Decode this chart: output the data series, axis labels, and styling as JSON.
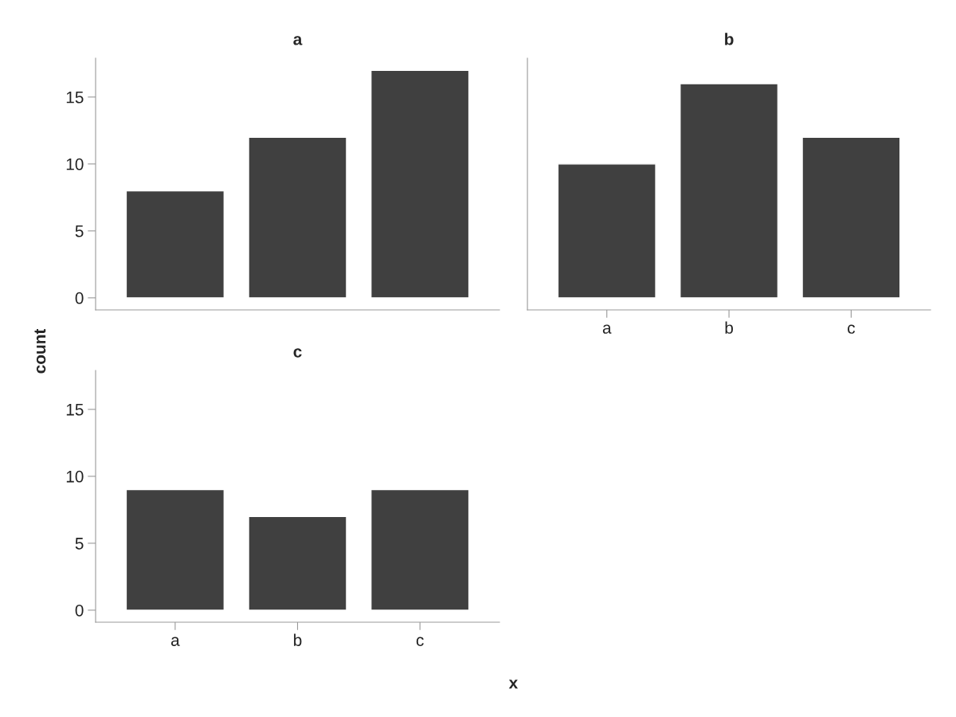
{
  "chart_data": [
    {
      "type": "bar",
      "title": "a",
      "categories": [
        null,
        null,
        null
      ],
      "values": [
        8,
        12,
        17
      ],
      "color": "#404040",
      "ylim": [
        -0.9,
        17.9
      ],
      "yticks": [
        0,
        5,
        10,
        15
      ],
      "tick_labels": "y",
      "grid": false,
      "legend": false
    },
    {
      "type": "bar",
      "title": "b",
      "categories": [
        "a",
        "b",
        "c"
      ],
      "values": [
        10,
        16,
        12
      ],
      "color": "#404040",
      "ylim": [
        -0.9,
        17.9
      ],
      "yticks": [
        0,
        5,
        10,
        15
      ],
      "tick_labels": "x",
      "grid": false,
      "legend": false
    },
    {
      "type": "bar",
      "title": "c",
      "categories": [
        "a",
        "b",
        "c"
      ],
      "values": [
        9,
        7,
        9
      ],
      "color": "#404040",
      "ylim": [
        -0.9,
        17.9
      ],
      "yticks": [
        0,
        5,
        10,
        15
      ],
      "xlabel": "x",
      "ylabel": "count",
      "grid": false,
      "legend": false
    }
  ]
}
